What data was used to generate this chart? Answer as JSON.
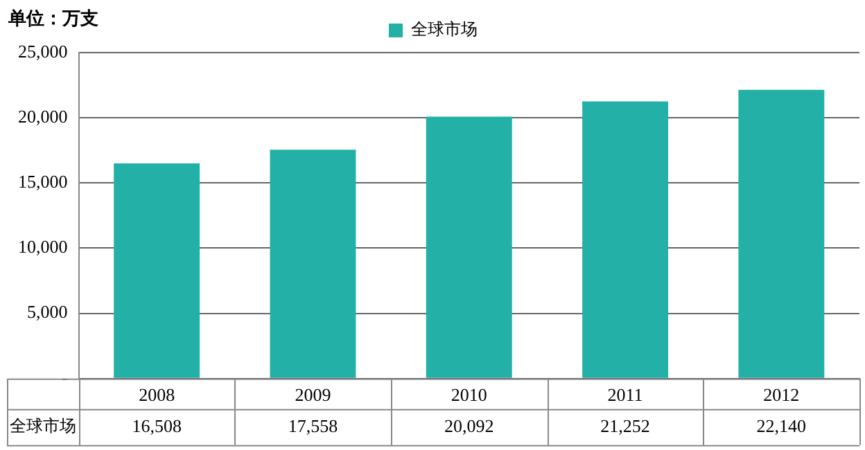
{
  "chart_data": {
    "type": "bar",
    "ylabel": "单位：万支",
    "categories": [
      "2008",
      "2009",
      "2010",
      "2011",
      "2012"
    ],
    "series": [
      {
        "name": "全球市场",
        "color": "#23b0a6",
        "values": [
          16508,
          17558,
          20092,
          21252,
          22140
        ],
        "value_labels": [
          "16,508",
          "17,558",
          "20,092",
          "21,252",
          "22,140"
        ]
      }
    ],
    "ylim": [
      0,
      25000
    ],
    "yticks": [
      {
        "value": 0,
        "label": "-"
      },
      {
        "value": 5000,
        "label": "5,000"
      },
      {
        "value": 10000,
        "label": "10,000"
      },
      {
        "value": 15000,
        "label": "15,000"
      },
      {
        "value": 20000,
        "label": "20,000"
      },
      {
        "value": 25000,
        "label": "25,000"
      }
    ],
    "grid": "y",
    "legend": "top"
  }
}
